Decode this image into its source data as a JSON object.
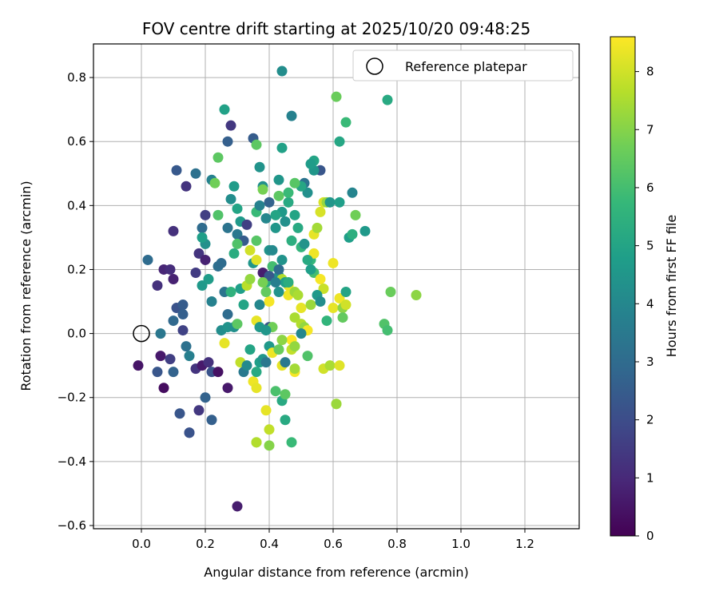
{
  "chart_data": {
    "type": "scatter",
    "title": "FOV centre drift starting at 2025/10/20 09:48:25",
    "xlabel": "Angular distance from reference (arcmin)",
    "ylabel": "Rotation from reference (arcmin)",
    "xlim": [
      -0.15,
      1.37
    ],
    "ylim": [
      -0.61,
      0.905
    ],
    "x_ticks": [
      0.0,
      0.2,
      0.4,
      0.6,
      0.8,
      1.0,
      1.2
    ],
    "x_tick_labels": [
      "0.0",
      "0.2",
      "0.4",
      "0.6",
      "0.8",
      "1.0",
      "1.2"
    ],
    "y_ticks": [
      -0.6,
      -0.4,
      -0.2,
      0.0,
      0.2,
      0.4,
      0.6,
      0.8
    ],
    "y_tick_labels": [
      "−0.6",
      "−0.4",
      "−0.2",
      "0.0",
      "0.2",
      "0.4",
      "0.6",
      "0.8"
    ],
    "grid": true,
    "legend": {
      "position": "top-right",
      "entries": [
        "Reference platepar"
      ]
    },
    "colorbar": {
      "label": "Hours from first FF file",
      "min": 0,
      "max": 8.6,
      "ticks": [
        0,
        1,
        2,
        3,
        4,
        5,
        6,
        7,
        8
      ],
      "tick_labels": [
        "0",
        "1",
        "2",
        "3",
        "4",
        "5",
        "6",
        "7",
        "8"
      ],
      "colormap": "viridis"
    },
    "reference_point": {
      "x": 0.0,
      "y": 0.0,
      "label": "Reference platepar"
    },
    "series": [
      {
        "name": "FOV centre drift",
        "points": [
          [
            -0.01,
            -0.1,
            0.5
          ],
          [
            0.07,
            -0.17,
            0.3
          ],
          [
            0.06,
            -0.07,
            0.6
          ],
          [
            0.05,
            -0.12,
            2.3
          ],
          [
            0.09,
            -0.08,
            1.6
          ],
          [
            0.1,
            -0.12,
            2.7
          ],
          [
            0.05,
            0.15,
            1.2
          ],
          [
            0.07,
            0.2,
            0.9
          ],
          [
            0.09,
            0.2,
            1.1
          ],
          [
            0.1,
            0.17,
            0.8
          ],
          [
            0.11,
            0.08,
            2.2
          ],
          [
            0.1,
            0.04,
            2.9
          ],
          [
            0.1,
            0.32,
            1.2
          ],
          [
            0.11,
            0.51,
            2.4
          ],
          [
            0.14,
            0.46,
            1.3
          ],
          [
            0.17,
            0.5,
            3.2
          ],
          [
            0.02,
            0.23,
            3.0
          ],
          [
            0.06,
            0.0,
            3.4
          ],
          [
            0.13,
            0.01,
            1.7
          ],
          [
            0.13,
            0.06,
            2.6
          ],
          [
            0.13,
            0.09,
            2.5
          ],
          [
            0.14,
            -0.04,
            3.2
          ],
          [
            0.15,
            -0.07,
            3.7
          ],
          [
            0.12,
            -0.25,
            2.3
          ],
          [
            0.15,
            -0.31,
            1.6
          ],
          [
            0.15,
            -0.31,
            2.2
          ],
          [
            0.18,
            -0.24,
            1.4
          ],
          [
            0.17,
            -0.11,
            1.3
          ],
          [
            0.2,
            -0.2,
            2.7
          ],
          [
            0.22,
            -0.27,
            2.6
          ],
          [
            0.19,
            -0.1,
            0.6
          ],
          [
            0.21,
            -0.09,
            1.2
          ],
          [
            0.22,
            -0.12,
            2.2
          ],
          [
            0.24,
            -0.12,
            0.4
          ],
          [
            0.27,
            -0.17,
            0.6
          ],
          [
            0.3,
            -0.54,
            0.7
          ],
          [
            0.17,
            0.19,
            1.5
          ],
          [
            0.18,
            0.25,
            1.3
          ],
          [
            0.19,
            0.15,
            4.6
          ],
          [
            0.2,
            0.23,
            0.8
          ],
          [
            0.21,
            0.17,
            4.7
          ],
          [
            0.22,
            0.1,
            3.8
          ],
          [
            0.24,
            0.21,
            3.1
          ],
          [
            0.25,
            0.22,
            3.0
          ],
          [
            0.19,
            0.33,
            3.0
          ],
          [
            0.2,
            0.37,
            1.6
          ],
          [
            0.2,
            0.28,
            4.3
          ],
          [
            0.19,
            0.3,
            4.8
          ],
          [
            0.22,
            0.48,
            3.8
          ],
          [
            0.23,
            0.47,
            6.7
          ],
          [
            0.24,
            0.55,
            6.4
          ],
          [
            0.24,
            0.37,
            6.2
          ],
          [
            0.26,
            0.7,
            4.9
          ],
          [
            0.27,
            0.6,
            2.6
          ],
          [
            0.28,
            0.65,
            1.4
          ],
          [
            0.27,
            0.33,
            3.3
          ],
          [
            0.28,
            0.42,
            4.2
          ],
          [
            0.29,
            0.46,
            4.7
          ],
          [
            0.3,
            0.39,
            5.0
          ],
          [
            0.3,
            0.31,
            3.4
          ],
          [
            0.31,
            0.35,
            4.6
          ],
          [
            0.32,
            0.29,
            2.5
          ],
          [
            0.33,
            0.34,
            1.6
          ],
          [
            0.35,
            0.61,
            2.5
          ],
          [
            0.36,
            0.59,
            6.4
          ],
          [
            0.37,
            0.52,
            4.4
          ],
          [
            0.36,
            0.38,
            5.8
          ],
          [
            0.37,
            0.4,
            3.8
          ],
          [
            0.38,
            0.46,
            4.3
          ],
          [
            0.38,
            0.45,
            6.8
          ],
          [
            0.39,
            0.36,
            4.0
          ],
          [
            0.4,
            0.41,
            2.7
          ],
          [
            0.26,
            0.13,
            3.3
          ],
          [
            0.27,
            0.06,
            3.0
          ],
          [
            0.28,
            0.13,
            5.5
          ],
          [
            0.29,
            0.25,
            5.3
          ],
          [
            0.3,
            0.28,
            6.2
          ],
          [
            0.31,
            0.14,
            4.8
          ],
          [
            0.32,
            0.09,
            5.0
          ],
          [
            0.33,
            0.15,
            7.7
          ],
          [
            0.34,
            0.17,
            7.2
          ],
          [
            0.34,
            0.26,
            8.0
          ],
          [
            0.35,
            0.22,
            4.5
          ],
          [
            0.36,
            0.29,
            6.3
          ],
          [
            0.36,
            0.23,
            8.2
          ],
          [
            0.37,
            0.09,
            4.0
          ],
          [
            0.38,
            0.19,
            0.7
          ],
          [
            0.39,
            0.16,
            5.2
          ],
          [
            0.4,
            0.26,
            4.4
          ],
          [
            0.41,
            0.26,
            4.1
          ],
          [
            0.25,
            0.01,
            4.2
          ],
          [
            0.26,
            -0.03,
            8.3
          ],
          [
            0.27,
            0.02,
            4.4
          ],
          [
            0.29,
            0.02,
            4.3
          ],
          [
            0.3,
            0.03,
            6.4
          ],
          [
            0.31,
            -0.09,
            7.8
          ],
          [
            0.32,
            -0.12,
            3.5
          ],
          [
            0.33,
            -0.1,
            4.1
          ],
          [
            0.34,
            -0.05,
            5.0
          ],
          [
            0.35,
            -0.15,
            8.4
          ],
          [
            0.36,
            -0.17,
            8.3
          ],
          [
            0.36,
            -0.12,
            5.2
          ],
          [
            0.37,
            -0.09,
            4.8
          ],
          [
            0.38,
            -0.08,
            4.5
          ],
          [
            0.39,
            -0.09,
            3.4
          ],
          [
            0.4,
            -0.04,
            4.6
          ],
          [
            0.4,
            0.02,
            2.3
          ],
          [
            0.41,
            0.02,
            6.7
          ],
          [
            0.36,
            -0.34,
            7.0
          ],
          [
            0.36,
            -0.34,
            7.6
          ],
          [
            0.4,
            -0.35,
            7.0
          ],
          [
            0.39,
            -0.24,
            8.3
          ],
          [
            0.4,
            -0.3,
            7.8
          ],
          [
            0.42,
            -0.18,
            6.1
          ],
          [
            0.44,
            -0.21,
            5.2
          ],
          [
            0.45,
            -0.19,
            6.4
          ],
          [
            0.45,
            -0.27,
            5.2
          ],
          [
            0.47,
            -0.34,
            5.8
          ],
          [
            0.44,
            -0.1,
            8.3
          ],
          [
            0.45,
            -0.09,
            3.5
          ],
          [
            0.46,
            0.12,
            8.4
          ],
          [
            0.46,
            0.15,
            8.3
          ],
          [
            0.48,
            0.13,
            7.3
          ],
          [
            0.48,
            0.05,
            7.5
          ],
          [
            0.49,
            0.12,
            7.5
          ],
          [
            0.5,
            0.08,
            8.3
          ],
          [
            0.5,
            0.03,
            7.6
          ],
          [
            0.51,
            0.02,
            7.2
          ],
          [
            0.52,
            0.01,
            8.5
          ],
          [
            0.53,
            0.09,
            7.3
          ],
          [
            0.47,
            -0.02,
            8.6
          ],
          [
            0.47,
            -0.05,
            7.8
          ],
          [
            0.48,
            -0.04,
            7.2
          ],
          [
            0.48,
            -0.12,
            8.5
          ],
          [
            0.48,
            -0.11,
            7.4
          ],
          [
            0.5,
            0.0,
            4.0
          ],
          [
            0.52,
            -0.07,
            6.2
          ],
          [
            0.53,
            0.23,
            5.7
          ],
          [
            0.54,
            0.25,
            8.4
          ],
          [
            0.54,
            0.19,
            6.0
          ],
          [
            0.54,
            0.31,
            8.3
          ],
          [
            0.55,
            0.33,
            7.4
          ],
          [
            0.56,
            0.38,
            8.1
          ],
          [
            0.56,
            0.17,
            8.5
          ],
          [
            0.57,
            0.14,
            7.9
          ],
          [
            0.57,
            0.41,
            8.1
          ],
          [
            0.58,
            0.41,
            7.2
          ],
          [
            0.59,
            0.41,
            4.5
          ],
          [
            0.6,
            0.22,
            8.4
          ],
          [
            0.58,
            0.04,
            5.6
          ],
          [
            0.57,
            -0.11,
            8.0
          ],
          [
            0.59,
            -0.1,
            7.5
          ],
          [
            0.6,
            0.08,
            8.3
          ],
          [
            0.61,
            -0.22,
            8.0
          ],
          [
            0.61,
            -0.22,
            7.3
          ],
          [
            0.62,
            -0.1,
            8.2
          ],
          [
            0.62,
            0.11,
            8.4
          ],
          [
            0.63,
            0.08,
            7.1
          ],
          [
            0.63,
            0.05,
            6.5
          ],
          [
            0.64,
            0.09,
            8.0
          ],
          [
            0.64,
            0.13,
            5.0
          ],
          [
            0.65,
            0.3,
            4.8
          ],
          [
            0.66,
            0.31,
            5.4
          ],
          [
            0.66,
            0.44,
            3.9
          ],
          [
            0.67,
            0.37,
            6.7
          ],
          [
            0.7,
            0.32,
            4.6
          ],
          [
            0.62,
            0.41,
            4.8
          ],
          [
            0.62,
            0.6,
            5.1
          ],
          [
            0.61,
            0.74,
            6.6
          ],
          [
            0.64,
            0.66,
            5.8
          ],
          [
            0.76,
            0.03,
            6.2
          ],
          [
            0.77,
            0.01,
            6.0
          ],
          [
            0.77,
            0.73,
            5.2
          ],
          [
            0.78,
            0.13,
            6.6
          ],
          [
            0.86,
            0.12,
            7.1
          ],
          [
            0.56,
            0.51,
            2.3
          ],
          [
            0.54,
            0.54,
            5.0
          ],
          [
            0.54,
            0.51,
            4.5
          ],
          [
            0.53,
            0.53,
            4.7
          ],
          [
            0.51,
            0.47,
            3.3
          ],
          [
            0.52,
            0.44,
            4.3
          ],
          [
            0.5,
            0.46,
            5.1
          ],
          [
            0.48,
            0.47,
            6.3
          ],
          [
            0.47,
            0.68,
            3.8
          ],
          [
            0.44,
            0.82,
            4.2
          ],
          [
            0.44,
            0.58,
            4.9
          ],
          [
            0.43,
            0.48,
            4.5
          ],
          [
            0.43,
            0.43,
            6.4
          ],
          [
            0.44,
            0.38,
            4.6
          ],
          [
            0.45,
            0.35,
            4.3
          ],
          [
            0.46,
            0.41,
            5.2
          ],
          [
            0.46,
            0.44,
            5.8
          ],
          [
            0.47,
            0.29,
            5.4
          ],
          [
            0.48,
            0.37,
            5.0
          ],
          [
            0.49,
            0.33,
            5.2
          ],
          [
            0.5,
            0.27,
            5.6
          ],
          [
            0.51,
            0.28,
            4.4
          ],
          [
            0.52,
            0.23,
            5.2
          ],
          [
            0.53,
            0.2,
            4.8
          ],
          [
            0.55,
            0.12,
            4.6
          ],
          [
            0.56,
            0.1,
            4.2
          ],
          [
            0.42,
            0.37,
            5.0
          ],
          [
            0.42,
            0.33,
            4.5
          ],
          [
            0.43,
            0.18,
            4.3
          ],
          [
            0.44,
            0.23,
            4.4
          ],
          [
            0.44,
            0.17,
            7.6
          ],
          [
            0.45,
            0.16,
            4.8
          ],
          [
            0.46,
            0.16,
            5.3
          ],
          [
            0.4,
            0.18,
            2.4
          ],
          [
            0.41,
            0.21,
            6.0
          ],
          [
            0.42,
            0.16,
            3.7
          ],
          [
            0.43,
            0.2,
            3.0
          ],
          [
            0.43,
            0.13,
            4.4
          ],
          [
            0.4,
            0.1,
            8.5
          ],
          [
            0.39,
            0.13,
            6.5
          ],
          [
            0.38,
            0.16,
            6.8
          ],
          [
            0.36,
            0.04,
            8.3
          ],
          [
            0.37,
            0.02,
            4.6
          ],
          [
            0.39,
            0.01,
            4.5
          ],
          [
            0.41,
            -0.06,
            8.4
          ],
          [
            0.43,
            -0.05,
            6.6
          ],
          [
            0.44,
            -0.02,
            7.1
          ]
        ]
      }
    ]
  }
}
